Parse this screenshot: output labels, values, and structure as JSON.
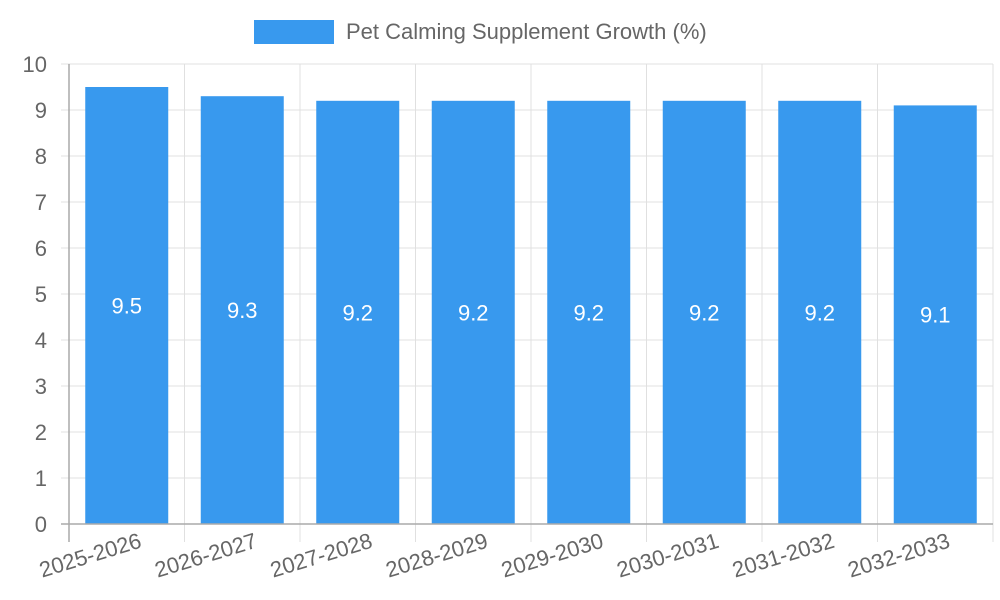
{
  "chart_data": {
    "type": "bar",
    "title": "",
    "legend": [
      {
        "label": "Pet Calming Supplement Growth (%)",
        "color": "#3899ee"
      }
    ],
    "legend_position": "top",
    "categories": [
      "2025-2026",
      "2026-2027",
      "2027-2028",
      "2028-2029",
      "2029-2030",
      "2030-2031",
      "2031-2032",
      "2032-2033"
    ],
    "series": [
      {
        "name": "Pet Calming Supplement Growth (%)",
        "values": [
          9.5,
          9.3,
          9.2,
          9.2,
          9.2,
          9.2,
          9.2,
          9.1
        ],
        "color": "#3899ee"
      }
    ],
    "data_labels": [
      "9.5",
      "9.3",
      "9.2",
      "9.2",
      "9.2",
      "9.2",
      "9.2",
      "9.1"
    ],
    "xlabel": "",
    "ylabel": "",
    "ylim": [
      0,
      10
    ],
    "yticks": [
      0,
      1,
      2,
      3,
      4,
      5,
      6,
      7,
      8,
      9,
      10
    ],
    "grid": true
  },
  "legend": {
    "label": "Pet Calming Supplement Growth (%)"
  }
}
